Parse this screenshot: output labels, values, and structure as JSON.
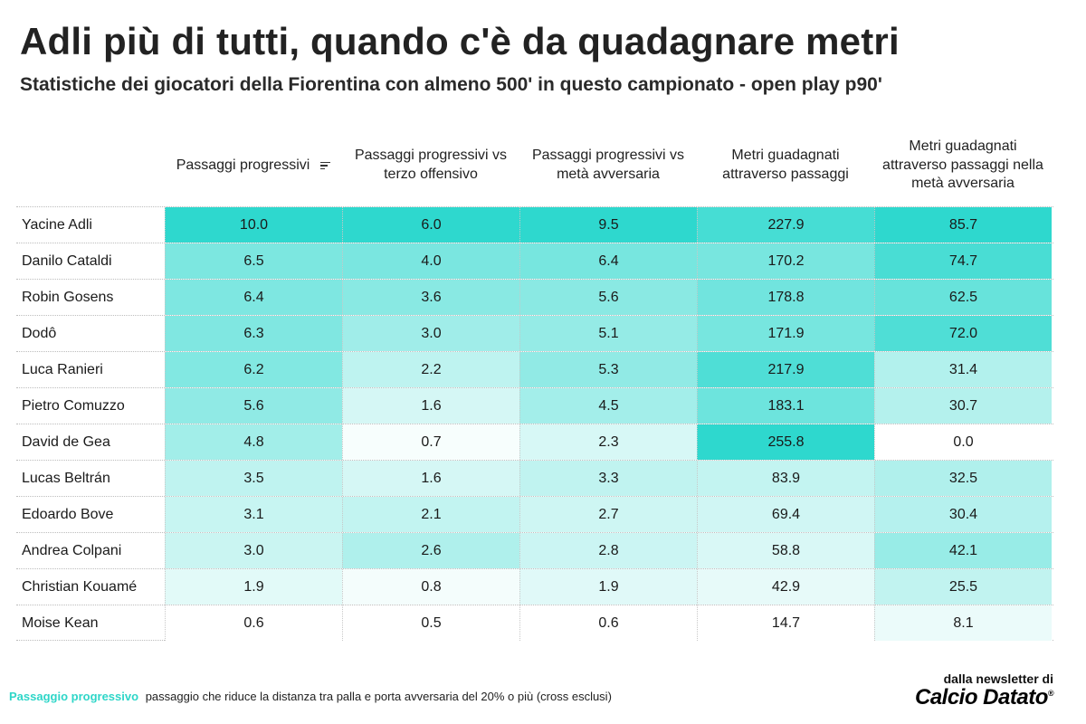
{
  "title": "Adli più di tutti, quando c'è da quadagnare metri",
  "subtitle": "Statistiche dei giocatori della Fiorentina con almeno 500' in questo campionato - open play p90'",
  "footer": {
    "term": "Passaggio progressivo",
    "definition": "passaggio che riduce la distanza tra palla e porta avversaria del 20% o più (cross esclusi)"
  },
  "brand": {
    "pre": "dalla newsletter di",
    "logo": "Calcio Datato",
    "mark": "®"
  },
  "colors": {
    "accent": "#2ed8ce",
    "low": "#ffffff"
  },
  "chart_data": {
    "type": "table",
    "sorted_by": "Passaggi progressivi",
    "columns": [
      "Passaggi progressivi",
      "Passaggi progressivi vs terzo offensivo",
      "Passaggi progressivi vs metà avversaria",
      "Metri guadagnati attraverso passaggi",
      "Metri guadagnati attraverso passaggi nella metà avversaria"
    ],
    "rows": [
      {
        "player": "Yacine Adli",
        "values": [
          "10.0",
          "6.0",
          "9.5",
          "227.9",
          "85.7"
        ]
      },
      {
        "player": "Danilo Cataldi",
        "values": [
          "6.5",
          "4.0",
          "6.4",
          "170.2",
          "74.7"
        ]
      },
      {
        "player": "Robin Gosens",
        "values": [
          "6.4",
          "3.6",
          "5.6",
          "178.8",
          "62.5"
        ]
      },
      {
        "player": "Dodô",
        "values": [
          "6.3",
          "3.0",
          "5.1",
          "171.9",
          "72.0"
        ]
      },
      {
        "player": "Luca Ranieri",
        "values": [
          "6.2",
          "2.2",
          "5.3",
          "217.9",
          "31.4"
        ]
      },
      {
        "player": "Pietro Comuzzo",
        "values": [
          "5.6",
          "1.6",
          "4.5",
          "183.1",
          "30.7"
        ]
      },
      {
        "player": "David de Gea",
        "values": [
          "4.8",
          "0.7",
          "2.3",
          "255.8",
          "0.0"
        ]
      },
      {
        "player": "Lucas Beltrán",
        "values": [
          "3.5",
          "1.6",
          "3.3",
          "83.9",
          "32.5"
        ]
      },
      {
        "player": "Edoardo Bove",
        "values": [
          "3.1",
          "2.1",
          "2.7",
          "69.4",
          "30.4"
        ]
      },
      {
        "player": "Andrea Colpani",
        "values": [
          "3.0",
          "2.6",
          "2.8",
          "58.8",
          "42.1"
        ]
      },
      {
        "player": "Christian Kouamé",
        "values": [
          "1.9",
          "0.8",
          "1.9",
          "42.9",
          "25.5"
        ]
      },
      {
        "player": "Moise Kean",
        "values": [
          "0.6",
          "0.5",
          "0.6",
          "14.7",
          "8.1"
        ]
      }
    ]
  }
}
